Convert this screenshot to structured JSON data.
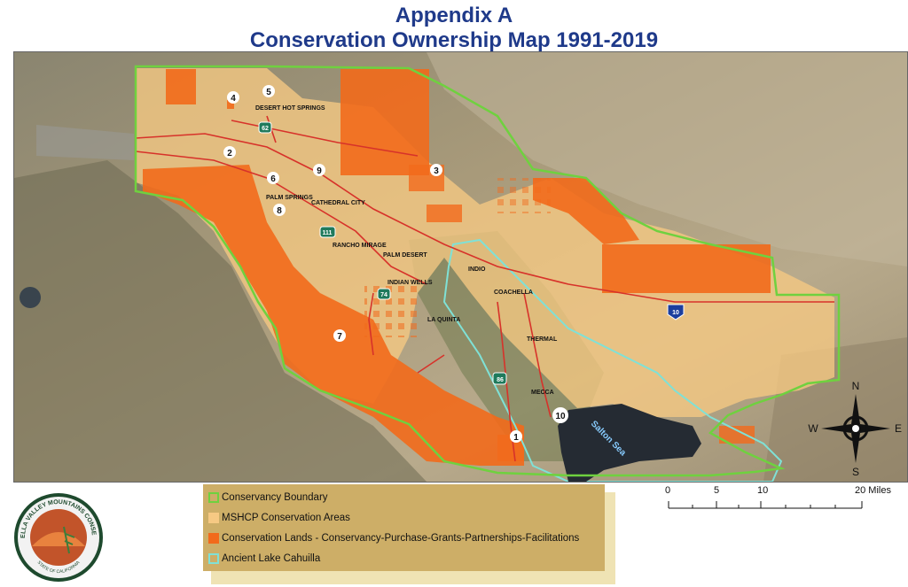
{
  "title": {
    "line1": "Appendix A",
    "line2": "Conservation Ownership Map 1991-2019"
  },
  "places": {
    "desert_hot_springs": "DESERT HOT SPRINGS",
    "palm_springs": "PALM SPRINGS",
    "cathedral_city": "CATHEDRAL CITY",
    "rancho_mirage": "RANCHO MIRAGE",
    "palm_desert": "PALM DESERT",
    "indian_wells": "INDIAN WELLS",
    "indio": "INDIO",
    "coachella": "COACHELLA",
    "la_quinta": "LA QUINTA",
    "thermal": "THERMAL",
    "mecca": "MECCA",
    "salton_sea": "Salton Sea"
  },
  "markers": [
    "1",
    "2",
    "3",
    "4",
    "5",
    "6",
    "7",
    "8",
    "9",
    "10"
  ],
  "highways": {
    "h62": "62",
    "h111": "111",
    "h74": "74",
    "h10": "10",
    "h86": "86"
  },
  "compass": {
    "n": "N",
    "s": "S",
    "e": "E",
    "w": "W"
  },
  "legend": {
    "items": [
      {
        "label": "Conservancy Boundary",
        "color": "#6fd13f",
        "style": "outline"
      },
      {
        "label": "MSHCP Conservation Areas",
        "color": "#f6c983",
        "style": "fill"
      },
      {
        "label": "Conservation Lands - Conservancy-Purchase-Grants-Partnerships-Facilitations",
        "color": "#f26a1b",
        "style": "fill"
      },
      {
        "label": "Ancient Lake Cahuilla",
        "color": "#7fe1d6",
        "style": "outline"
      }
    ]
  },
  "scale": {
    "ticks": [
      "0",
      "5",
      "10",
      "20 Miles"
    ]
  },
  "seal": {
    "top_text": "COACHELLA VALLEY MOUNTAINS CONSERVANCY",
    "bottom_text": "STATE OF CALIFORNIA"
  },
  "colors": {
    "title": "#1f3a8a",
    "boundary": "#6fd13f",
    "mshcp": "#f6c983",
    "conservation": "#f26a1b",
    "lake": "#7fe1d6",
    "roads": "#d7322a"
  }
}
